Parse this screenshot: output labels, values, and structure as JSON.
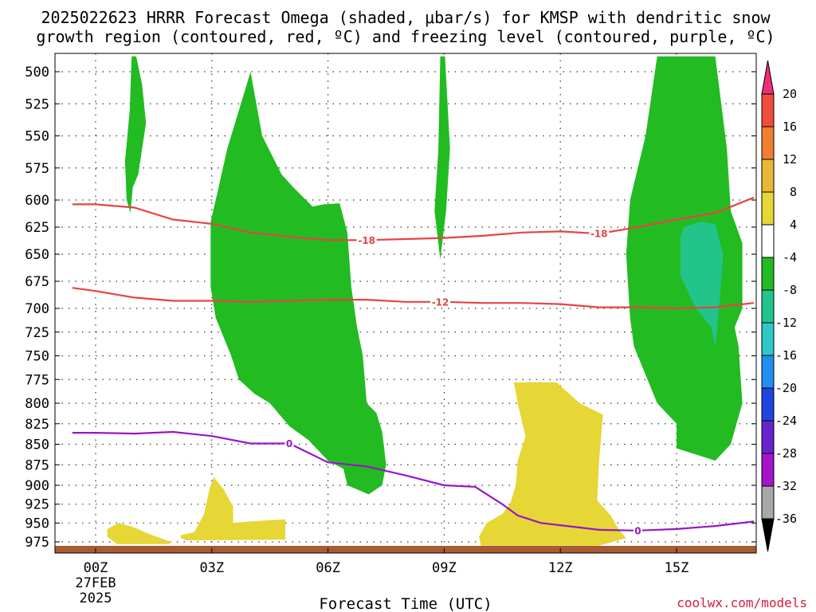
{
  "title_line1": "2025022623 HRRR Forecast Omega (shaded, μbar/s) for KMSP with dendritic snow",
  "title_line2": "growth region (contoured, red, ºC) and freezing level (contoured, purple, ºC)",
  "credit": "coolwx.com/models",
  "chart_data": {
    "type": "contour",
    "xlabel": "Forecast Time (UTC)",
    "x_ticks": [
      "00Z",
      "03Z",
      "06Z",
      "09Z",
      "12Z",
      "15Z"
    ],
    "x_date_line": "27FEB",
    "x_year_line": "2025",
    "xlim_hours": [
      -0.6,
      17
    ],
    "y_ticks": [
      500,
      525,
      550,
      575,
      600,
      625,
      650,
      675,
      700,
      725,
      750,
      775,
      800,
      825,
      850,
      875,
      900,
      925,
      950,
      975
    ],
    "ylim_hPa": [
      490,
      985
    ],
    "y_axis_inverted": true,
    "grid": "dotted",
    "colorbar": {
      "labels": [
        "20",
        "16",
        "12",
        "8",
        "4",
        "-4",
        "-8",
        "-12",
        "-16",
        "-20",
        "-24",
        "-28",
        "-32",
        "-36"
      ],
      "colors": [
        "#ee2c7a",
        "#ee4d3d",
        "#f08030",
        "#e8b834",
        "#e6d636",
        "#ffffff",
        "#22bb22",
        "#22c48c",
        "#2cc9c9",
        "#1f8ff0",
        "#2044e0",
        "#6a22cc",
        "#a414c8",
        "#a8a8a8",
        "#000000"
      ]
    },
    "contours": [
      {
        "color": "#e64343",
        "label": "-18",
        "points": [
          [
            -0.6,
            604
          ],
          [
            0,
            604
          ],
          [
            1,
            607
          ],
          [
            2,
            618
          ],
          [
            3,
            622
          ],
          [
            4,
            630
          ],
          [
            5,
            634
          ],
          [
            6,
            637
          ],
          [
            7,
            637
          ],
          [
            8,
            636
          ],
          [
            9,
            635
          ],
          [
            10,
            633
          ],
          [
            11,
            630
          ],
          [
            12,
            629
          ],
          [
            13,
            631
          ],
          [
            14,
            625
          ],
          [
            15,
            618
          ],
          [
            16,
            612
          ],
          [
            17,
            598
          ]
        ]
      },
      {
        "color": "#e64343",
        "label": "-12",
        "points": [
          [
            -0.6,
            681
          ],
          [
            0,
            684
          ],
          [
            1,
            690
          ],
          [
            2,
            693
          ],
          [
            3,
            693
          ],
          [
            4,
            694
          ],
          [
            5,
            693
          ],
          [
            6,
            692
          ],
          [
            7,
            692
          ],
          [
            8,
            694
          ],
          [
            9,
            694
          ],
          [
            10,
            695
          ],
          [
            11,
            695
          ],
          [
            12,
            696
          ],
          [
            13,
            699
          ],
          [
            14,
            699
          ],
          [
            15,
            700
          ],
          [
            16,
            699
          ],
          [
            17,
            695
          ]
        ]
      },
      {
        "color": "#9a16c4",
        "label": "0",
        "points": [
          [
            -0.6,
            836
          ],
          [
            0,
            836
          ],
          [
            1,
            837
          ],
          [
            2,
            835
          ],
          [
            3,
            840
          ],
          [
            4,
            849
          ],
          [
            5,
            849
          ],
          [
            6,
            872
          ],
          [
            7,
            877
          ],
          [
            8,
            888
          ],
          [
            9,
            900
          ],
          [
            9.8,
            902
          ],
          [
            10.5,
            925
          ],
          [
            10.9,
            940
          ],
          [
            11.5,
            950
          ],
          [
            12.5,
            956
          ],
          [
            13,
            959
          ],
          [
            14,
            960
          ],
          [
            15,
            958
          ],
          [
            16,
            954
          ],
          [
            17,
            948
          ]
        ]
      }
    ],
    "omega_regions": [
      {
        "value": "-4 to -8",
        "points": [
          [
            0.93,
            488
          ],
          [
            0.88,
            530
          ],
          [
            0.76,
            570
          ],
          [
            0.8,
            600
          ],
          [
            0.9,
            612
          ],
          [
            0.96,
            590
          ],
          [
            1.1,
            580
          ],
          [
            1.3,
            540
          ],
          [
            1.2,
            510
          ],
          [
            1.05,
            488
          ]
        ]
      },
      {
        "value": "-4 to -8",
        "points": [
          [
            2.97,
            620
          ],
          [
            3.1,
            600
          ],
          [
            3.4,
            560
          ],
          [
            3.8,
            520
          ],
          [
            4.0,
            500
          ],
          [
            4.3,
            550
          ],
          [
            4.8,
            580
          ],
          [
            5.1,
            590
          ],
          [
            5.6,
            606
          ],
          [
            5.9,
            604
          ],
          [
            6.3,
            603
          ],
          [
            6.5,
            630
          ],
          [
            6.6,
            680
          ],
          [
            6.75,
            720
          ],
          [
            6.9,
            750
          ],
          [
            7.0,
            800
          ],
          [
            7.25,
            812
          ],
          [
            7.4,
            835
          ],
          [
            7.45,
            855
          ],
          [
            7.5,
            875
          ],
          [
            7.4,
            900
          ],
          [
            7.05,
            912
          ],
          [
            6.5,
            900
          ],
          [
            6.4,
            880
          ],
          [
            6.0,
            870
          ],
          [
            5.5,
            845
          ],
          [
            5.0,
            828
          ],
          [
            4.5,
            800
          ],
          [
            4.1,
            790
          ],
          [
            3.7,
            775
          ],
          [
            3.5,
            750
          ],
          [
            3.1,
            710
          ],
          [
            2.97,
            680
          ]
        ]
      },
      {
        "value": "-4 to -8",
        "points": [
          [
            8.9,
            488
          ],
          [
            8.85,
            560
          ],
          [
            8.75,
            610
          ],
          [
            8.9,
            655
          ],
          [
            9.05,
            610
          ],
          [
            9.15,
            560
          ],
          [
            9.02,
            488
          ]
        ]
      },
      {
        "value": "-4 to -8",
        "points": [
          [
            14.5,
            488
          ],
          [
            14.2,
            550
          ],
          [
            13.8,
            600
          ],
          [
            13.7,
            650
          ],
          [
            13.8,
            710
          ],
          [
            13.9,
            740
          ],
          [
            14.2,
            770
          ],
          [
            14.5,
            800
          ],
          [
            15,
            825
          ],
          [
            15,
            855
          ],
          [
            16.0,
            870
          ],
          [
            16.4,
            850
          ],
          [
            16.7,
            800
          ],
          [
            16.6,
            740
          ],
          [
            16.5,
            720
          ],
          [
            16.7,
            700
          ],
          [
            16.7,
            640
          ],
          [
            16.4,
            610
          ],
          [
            16.3,
            560
          ],
          [
            16.0,
            488
          ]
        ]
      },
      {
        "value": "-8 to -12",
        "points": [
          [
            15.1,
            634
          ],
          [
            15.2,
            625
          ],
          [
            15.6,
            620
          ],
          [
            16.0,
            622
          ],
          [
            16.2,
            650
          ],
          [
            16.1,
            700
          ],
          [
            16.0,
            740
          ],
          [
            15.9,
            720
          ],
          [
            15.5,
            700
          ],
          [
            15.1,
            670
          ]
        ]
      },
      {
        "value": "4 to 8",
        "points": [
          [
            0.3,
            958
          ],
          [
            0.6,
            950
          ],
          [
            1.0,
            956
          ],
          [
            1.4,
            965
          ],
          [
            1.95,
            975
          ],
          [
            1.9,
            978
          ],
          [
            0.55,
            978
          ],
          [
            0.3,
            968
          ]
        ]
      },
      {
        "value": "4 to 8",
        "points": [
          [
            2.2,
            966
          ],
          [
            2.55,
            962
          ],
          [
            2.8,
            938
          ],
          [
            2.95,
            903
          ],
          [
            3.05,
            890
          ],
          [
            3.3,
            905
          ],
          [
            3.55,
            928
          ],
          [
            3.55,
            950
          ],
          [
            4.0,
            948
          ],
          [
            4.9,
            945
          ],
          [
            4.9,
            972
          ],
          [
            2.35,
            973
          ],
          [
            2.2,
            970
          ]
        ]
      },
      {
        "value": "4 to 8",
        "points": [
          [
            9.9,
            968
          ],
          [
            10.1,
            950
          ],
          [
            10.5,
            938
          ],
          [
            10.7,
            925
          ],
          [
            10.85,
            900
          ],
          [
            10.9,
            870
          ],
          [
            11.1,
            840
          ],
          [
            10.9,
            800
          ],
          [
            10.8,
            778
          ],
          [
            11.9,
            778
          ],
          [
            12.5,
            800
          ],
          [
            13.1,
            814
          ],
          [
            13.0,
            870
          ],
          [
            12.95,
            920
          ],
          [
            13.3,
            940
          ],
          [
            13.5,
            958
          ],
          [
            13.7,
            970
          ],
          [
            13.0,
            980
          ],
          [
            12.0,
            980
          ],
          [
            9.95,
            980
          ]
        ]
      }
    ],
    "ground": {
      "color": "#a85a32",
      "surface_hPa": 975
    }
  }
}
